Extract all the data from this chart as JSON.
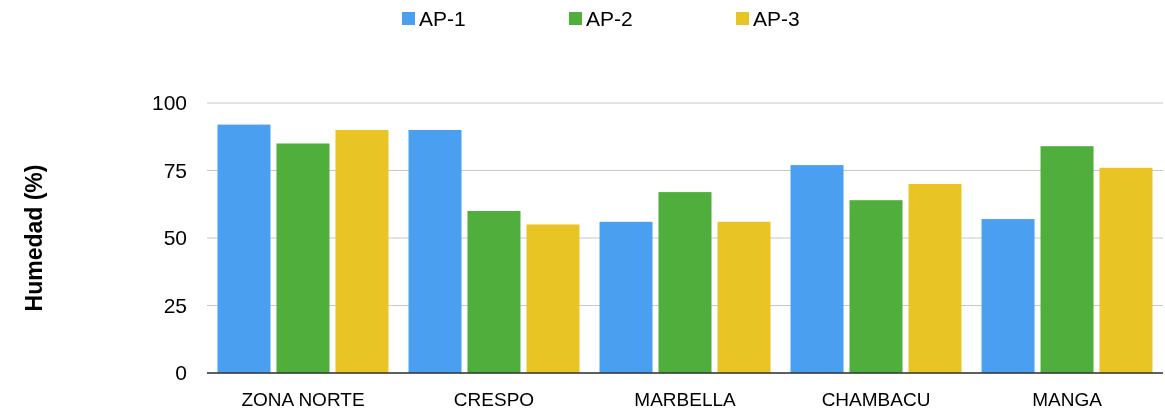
{
  "chart_data": {
    "type": "bar",
    "ylabel": "Humedad (%)",
    "categories": [
      "ZONA NORTE",
      "CRESPO",
      "MARBELLA",
      "CHAMBACU",
      "MANGA"
    ],
    "series": [
      {
        "name": "AP-1",
        "color": "#4a9ff0",
        "values": [
          92,
          90,
          56,
          77,
          57
        ]
      },
      {
        "name": "AP-2",
        "color": "#4fae3c",
        "values": [
          85,
          60,
          67,
          64,
          84
        ]
      },
      {
        "name": "AP-3",
        "color": "#e8c525",
        "values": [
          90,
          55,
          56,
          70,
          76
        ]
      }
    ],
    "ylim": [
      0,
      100
    ],
    "yticks": [
      0,
      25,
      50,
      75,
      100
    ],
    "grid": "y",
    "legend": "top"
  }
}
